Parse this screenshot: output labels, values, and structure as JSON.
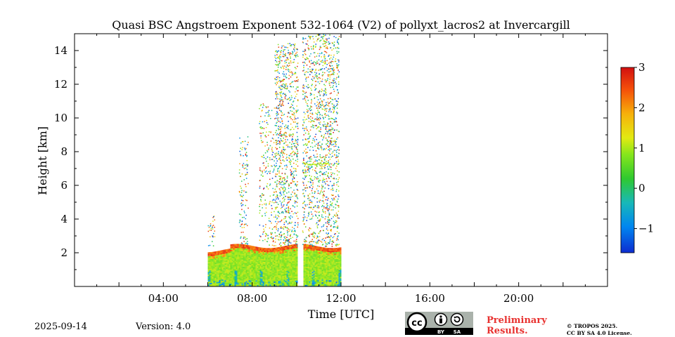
{
  "chart_data": {
    "type": "heatmap",
    "title": "Quasi BSC Angstroem Exponent 532-1064 (V2) of pollyxt_lacros2 at Invercargill",
    "xlabel": "Time [UTC]",
    "ylabel": "Height [km]",
    "x_range_hours": [
      0,
      24
    ],
    "y_range_km": [
      0,
      15
    ],
    "x_ticks": [
      {
        "hours": 4,
        "label": "04:00"
      },
      {
        "hours": 8,
        "label": "08:00"
      },
      {
        "hours": 12,
        "label": "12:00"
      },
      {
        "hours": 16,
        "label": "16:00"
      },
      {
        "hours": 20,
        "label": "20:00"
      }
    ],
    "y_ticks": [
      {
        "km": 2,
        "label": "2"
      },
      {
        "km": 4,
        "label": "4"
      },
      {
        "km": 6,
        "label": "6"
      },
      {
        "km": 8,
        "label": "8"
      },
      {
        "km": 10,
        "label": "10"
      },
      {
        "km": 12,
        "label": "12"
      },
      {
        "km": 14,
        "label": "14"
      }
    ],
    "colorbar": {
      "min": -1.6,
      "max": 3,
      "colormap": "jet",
      "ticks": [
        {
          "value": 3,
          "label": "3"
        },
        {
          "value": 2,
          "label": "2"
        },
        {
          "value": 1,
          "label": "1"
        },
        {
          "value": 0,
          "label": "0"
        },
        {
          "value": -1,
          "label": "−1"
        }
      ]
    },
    "data_coverage": {
      "start_hours": 6.0,
      "end_hours": 12.0,
      "gap_hours": [
        10.05,
        10.25
      ],
      "boundary_layer_top_km": 2.4,
      "typical_value_in_boundary_layer": 0.9
    },
    "grid": false,
    "legend": "colorbar-right"
  },
  "footer": {
    "date": "2025-09-14",
    "version": "Version: 4.0",
    "preliminary": "Preliminary Results.",
    "copyright_line1": "© TROPOS 2025.",
    "copyright_line2": "CC BY SA 4.0 License.",
    "cc_label": "cc",
    "by_label": "BY",
    "sa_label": "SA"
  }
}
